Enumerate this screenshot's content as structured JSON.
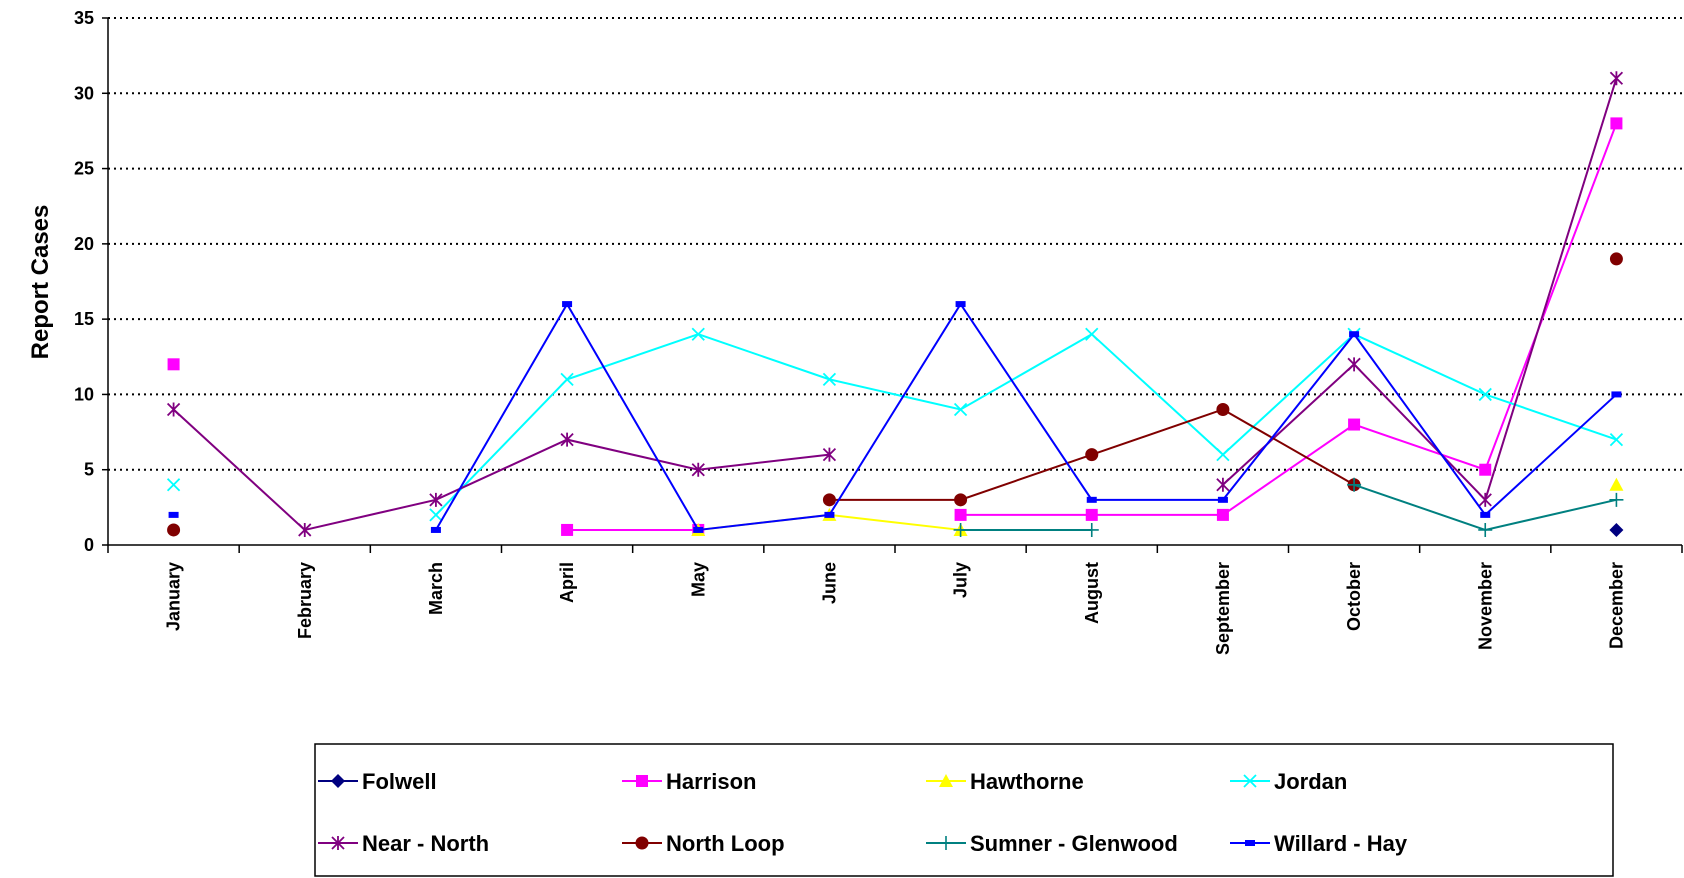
{
  "chart_data": {
    "type": "line",
    "title": "",
    "xlabel": "",
    "ylabel": "Report Cases",
    "ylim": [
      0,
      35
    ],
    "yticks": [
      0,
      5,
      10,
      15,
      20,
      25,
      30,
      35
    ],
    "grid": "horizontal dotted",
    "legend_position": "bottom",
    "categories": [
      "January",
      "February",
      "March",
      "April",
      "May",
      "June",
      "July",
      "August",
      "September",
      "October",
      "November",
      "December"
    ],
    "series": [
      {
        "name": "Folwell",
        "color": "#000080",
        "marker": "diamond",
        "values": [
          null,
          null,
          null,
          null,
          null,
          null,
          null,
          null,
          null,
          null,
          null,
          1
        ]
      },
      {
        "name": "Harrison",
        "color": "#FF00FF",
        "marker": "square",
        "values": [
          12,
          null,
          null,
          1,
          1,
          null,
          2,
          2,
          2,
          8,
          5,
          28
        ]
      },
      {
        "name": "Hawthorne",
        "color": "#FFFF00",
        "marker": "triangle",
        "values": [
          null,
          null,
          null,
          null,
          1,
          2,
          1,
          null,
          null,
          null,
          null,
          4
        ]
      },
      {
        "name": "Jordan",
        "color": "#00FFFF",
        "marker": "x",
        "values": [
          4,
          null,
          2,
          11,
          14,
          11,
          9,
          14,
          6,
          14,
          10,
          7
        ]
      },
      {
        "name": "Near - North",
        "color": "#800080",
        "marker": "star",
        "values": [
          9,
          1,
          3,
          7,
          5,
          6,
          null,
          null,
          4,
          12,
          3,
          31
        ]
      },
      {
        "name": "North Loop",
        "color": "#800000",
        "marker": "circle",
        "values": [
          1,
          null,
          null,
          null,
          null,
          3,
          3,
          6,
          9,
          4,
          null,
          19
        ]
      },
      {
        "name": "Sumner - Glenwood",
        "color": "#008080",
        "marker": "plus",
        "values": [
          null,
          null,
          null,
          null,
          null,
          null,
          1,
          1,
          null,
          4,
          1,
          3
        ]
      },
      {
        "name": "Willard - Hay",
        "color": "#0000FF",
        "marker": "dash",
        "values": [
          2,
          null,
          1,
          16,
          1,
          2,
          16,
          3,
          3,
          14,
          2,
          10
        ]
      }
    ]
  }
}
